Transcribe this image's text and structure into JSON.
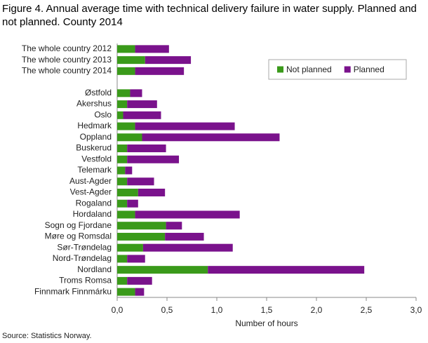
{
  "chart_data": {
    "type": "stacked-barh",
    "title": "Figure 4. Annual average time with technical delivery failure in water supply. Planned and not planned. County 2014",
    "x_label": "Number of hours",
    "source": "Source: Statistics Norway.",
    "categories": [
      "The whole country 2012",
      "The whole country 2013",
      "The whole country 2014",
      null,
      "Østfold",
      "Akershus",
      "Oslo",
      "Hedmark",
      "Oppland",
      "Buskerud",
      "Vestfold",
      "Telemark",
      "Aust-Agder",
      "Vest-Agder",
      "Rogaland",
      "Hordaland",
      "Sogn og Fjordane",
      "Møre og Romsdal",
      "Sør-Trøndelag",
      "Nord-Trøndelag",
      "Nordland",
      "Troms Romsa",
      "Finnmark Finnmárku"
    ],
    "series": [
      {
        "name": "Not planned",
        "color": "#3a9a1a",
        "values": [
          0.18,
          0.28,
          0.18,
          null,
          0.13,
          0.1,
          0.06,
          0.18,
          0.25,
          0.1,
          0.1,
          0.08,
          0.1,
          0.21,
          0.1,
          0.18,
          0.49,
          0.48,
          0.26,
          0.1,
          0.91,
          0.1,
          0.18
        ]
      },
      {
        "name": "Planned",
        "color": "#7a128c",
        "values": [
          0.34,
          0.46,
          0.49,
          null,
          0.12,
          0.3,
          0.38,
          1.0,
          1.38,
          0.39,
          0.52,
          0.07,
          0.27,
          0.27,
          0.11,
          1.05,
          0.16,
          0.39,
          0.9,
          0.18,
          1.57,
          0.25,
          0.09
        ]
      }
    ],
    "xlim": [
      0,
      3
    ],
    "xticks": [
      {
        "value": 0,
        "label": "0,0"
      },
      {
        "value": 0.5,
        "label": "0,5"
      },
      {
        "value": 1,
        "label": "1,0"
      },
      {
        "value": 1.5,
        "label": "1,5"
      },
      {
        "value": 2,
        "label": "2,0"
      },
      {
        "value": 2.5,
        "label": "2,5"
      },
      {
        "value": 3,
        "label": "3,0"
      }
    ],
    "legend": "upper right"
  }
}
